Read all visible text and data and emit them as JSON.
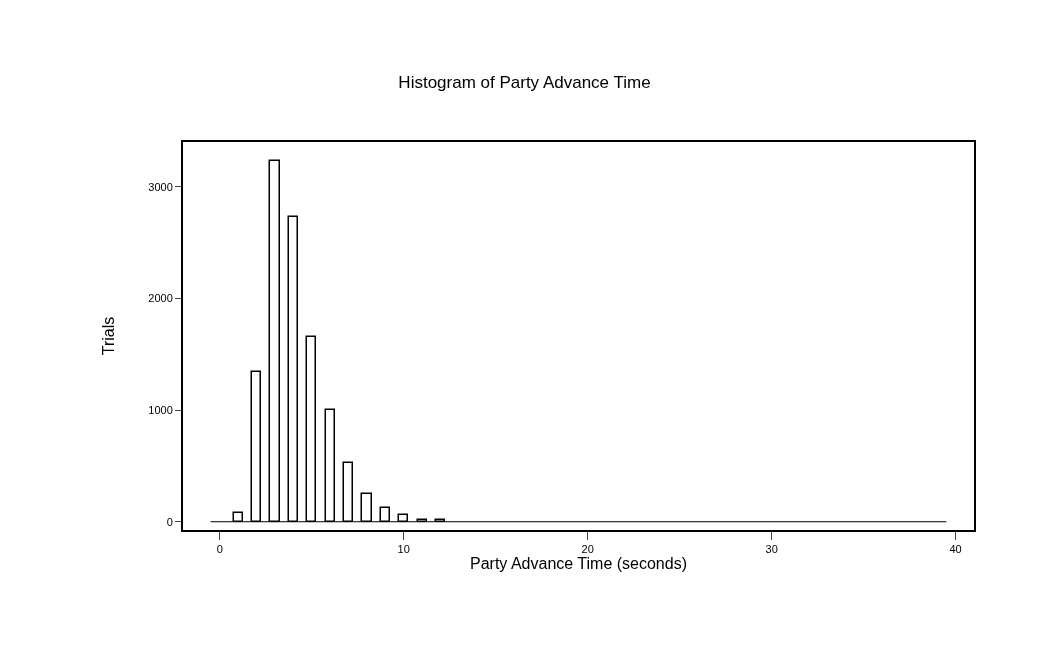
{
  "chart_data": {
    "type": "histogram",
    "title": "Histogram of Party Advance Time",
    "xlabel": "Party Advance Time (seconds)",
    "ylabel": "Trials",
    "bins": [
      -0.5,
      0.5,
      1.5,
      2.5,
      3.5,
      4.5,
      5.5,
      6.5,
      7.5,
      8.5,
      9.5,
      10.5,
      11.5,
      12.5,
      13.5,
      14.5,
      15.5,
      16.5,
      17.5,
      18.5,
      19.5,
      20.5,
      21.5,
      22.5,
      23.5,
      24.5,
      25.5,
      26.5,
      27.5,
      28.5,
      29.5,
      30.5,
      31.5,
      32.5,
      33.5,
      34.5,
      35.5,
      36.5,
      37.5,
      38.5,
      39.5
    ],
    "values": [
      0,
      80,
      1340,
      3230,
      2730,
      1650,
      1000,
      530,
      250,
      120,
      60,
      20,
      20,
      0,
      0,
      0,
      0,
      0,
      0,
      0,
      0,
      0,
      0,
      0,
      0,
      0,
      0,
      0,
      0,
      0,
      0,
      0,
      0,
      0,
      0,
      0,
      0,
      0,
      0,
      0
    ],
    "color": "#000000",
    "xlim": [
      -2,
      41
    ],
    "xticks": [
      0,
      10,
      20,
      30,
      40
    ],
    "ylim": [
      -74,
      3400
    ],
    "yticks": [
      0,
      1000,
      2000,
      3000
    ]
  }
}
